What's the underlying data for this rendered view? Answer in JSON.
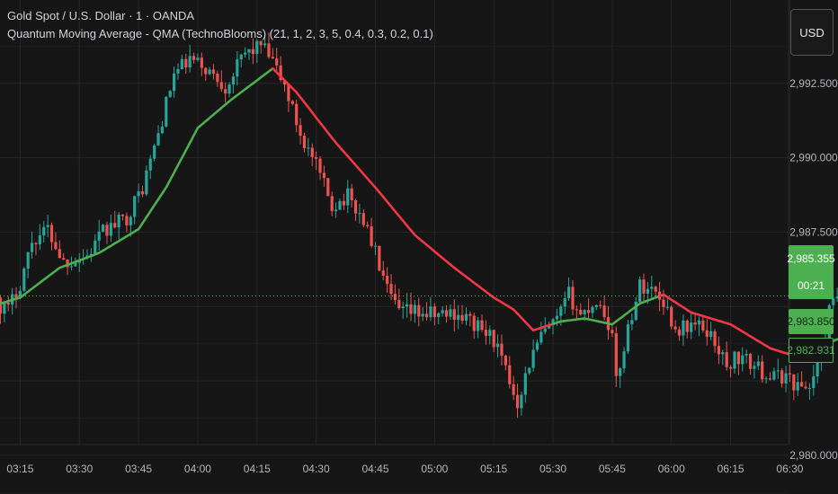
{
  "header": {
    "symbol_line": "Gold Spot / U.S. Dollar · 1 · OANDA",
    "indicator_line": "Quantum Moving Average - QMA (TechnoBlooms) (21, 1, 2, 3, 5, 0.4, 0.3, 0.2, 0.1)"
  },
  "currency_button": "USD",
  "price_badges": {
    "current_price": "2,985.355",
    "countdown": "00:21",
    "qma_value": "2,983.850",
    "last_value": "2,982.931"
  },
  "colors": {
    "background": "#161616",
    "grid": "#262626",
    "up_candle": "#26a69a",
    "down_candle": "#ef5350",
    "qma_up": "#4caf50",
    "qma_down": "#f23645",
    "price_line": "#4caf50"
  },
  "chart_data": {
    "type": "candlestick",
    "y_axis": {
      "ticks": [
        2980,
        2982.5,
        2985,
        2987.5,
        2990,
        2992.5
      ],
      "tick_labels": [
        "2,980.000",
        "",
        "",
        "2,987.500",
        "2,990.000",
        "2,992.500"
      ],
      "range": [
        2978.7,
        2995.3
      ]
    },
    "x_axis": {
      "ticks": [
        "03:15",
        "03:30",
        "03:45",
        "04:00",
        "04:15",
        "04:30",
        "04:45",
        "05:00",
        "05:15",
        "05:30",
        "05:45",
        "06:00",
        "06:15",
        "06:30"
      ],
      "range_minutes": [
        189.9,
        402.2
      ]
    },
    "current_price": 2985.355,
    "qma_anchors": [
      [
        185,
        2984.9
      ],
      [
        195,
        2985.3
      ],
      [
        205,
        2986.3
      ],
      [
        215,
        2986.8
      ],
      [
        225,
        2987.6
      ],
      [
        232,
        2989.0
      ],
      [
        240,
        2991.0
      ],
      [
        248,
        2991.9
      ],
      [
        255,
        2992.6
      ],
      [
        259,
        2993.0
      ],
      [
        265,
        2992.2
      ],
      [
        275,
        2990.5
      ],
      [
        285,
        2989.0
      ],
      [
        295,
        2987.4
      ],
      [
        305,
        2986.3
      ],
      [
        315,
        2985.3
      ],
      [
        320,
        2984.9
      ],
      [
        325,
        2984.2
      ],
      [
        332,
        2984.5
      ],
      [
        338,
        2984.6
      ],
      [
        345,
        2984.4
      ],
      [
        352,
        2985.1
      ],
      [
        358,
        2985.4
      ],
      [
        365,
        2984.8
      ],
      [
        375,
        2984.4
      ],
      [
        385,
        2983.6
      ],
      [
        392,
        2983.3
      ],
      [
        397,
        2983.6
      ],
      [
        402,
        2983.9
      ]
    ],
    "qma_color_switches": [
      [
        185,
        "up"
      ],
      [
        259,
        "down"
      ],
      [
        330,
        "up"
      ],
      [
        357,
        "down"
      ],
      [
        397,
        "up"
      ]
    ],
    "price_anchors": [
      [
        186,
        2985.3
      ],
      [
        192,
        2984.9
      ],
      [
        195,
        2985.8
      ],
      [
        198,
        2987.2
      ],
      [
        202,
        2987.6
      ],
      [
        206,
        2986.5
      ],
      [
        212,
        2986.7
      ],
      [
        216,
        2987.5
      ],
      [
        222,
        2988.0
      ],
      [
        226,
        2989.0
      ],
      [
        230,
        2990.8
      ],
      [
        234,
        2992.8
      ],
      [
        238,
        2993.3
      ],
      [
        242,
        2993.0
      ],
      [
        247,
        2992.4
      ],
      [
        252,
        2993.5
      ],
      [
        256,
        2993.8
      ],
      [
        259,
        2993.2
      ],
      [
        262,
        2992.4
      ],
      [
        266,
        2990.8
      ],
      [
        270,
        2989.7
      ],
      [
        274,
        2988.4
      ],
      [
        278,
        2988.7
      ],
      [
        282,
        2987.9
      ],
      [
        285,
        2986.8
      ],
      [
        288,
        2985.5
      ],
      [
        291,
        2984.8
      ],
      [
        296,
        2984.8
      ],
      [
        300,
        2984.7
      ],
      [
        305,
        2984.8
      ],
      [
        308,
        2984.6
      ],
      [
        312,
        2984.2
      ],
      [
        315,
        2983.9
      ],
      [
        318,
        2982.8
      ],
      [
        321,
        2981.8
      ],
      [
        324,
        2983.1
      ],
      [
        327,
        2984.0
      ],
      [
        331,
        2984.5
      ],
      [
        334,
        2985.4
      ],
      [
        337,
        2984.7
      ],
      [
        341,
        2985.2
      ],
      [
        343,
        2984.8
      ],
      [
        345,
        2984.0
      ],
      [
        346,
        2982.4
      ],
      [
        349,
        2984.3
      ],
      [
        352,
        2985.7
      ],
      [
        355,
        2985.6
      ],
      [
        358,
        2985.2
      ],
      [
        361,
        2984.2
      ],
      [
        365,
        2984.4
      ],
      [
        369,
        2984.2
      ],
      [
        372,
        2983.6
      ],
      [
        374,
        2982.9
      ],
      [
        376,
        2983.3
      ],
      [
        380,
        2983.1
      ],
      [
        383,
        2982.8
      ],
      [
        386,
        2982.6
      ],
      [
        389,
        2982.7
      ],
      [
        392,
        2982.3
      ],
      [
        395,
        2982.3
      ],
      [
        398,
        2983.5
      ],
      [
        400,
        2984.8
      ],
      [
        402,
        2985.35
      ]
    ],
    "seed": 17
  }
}
